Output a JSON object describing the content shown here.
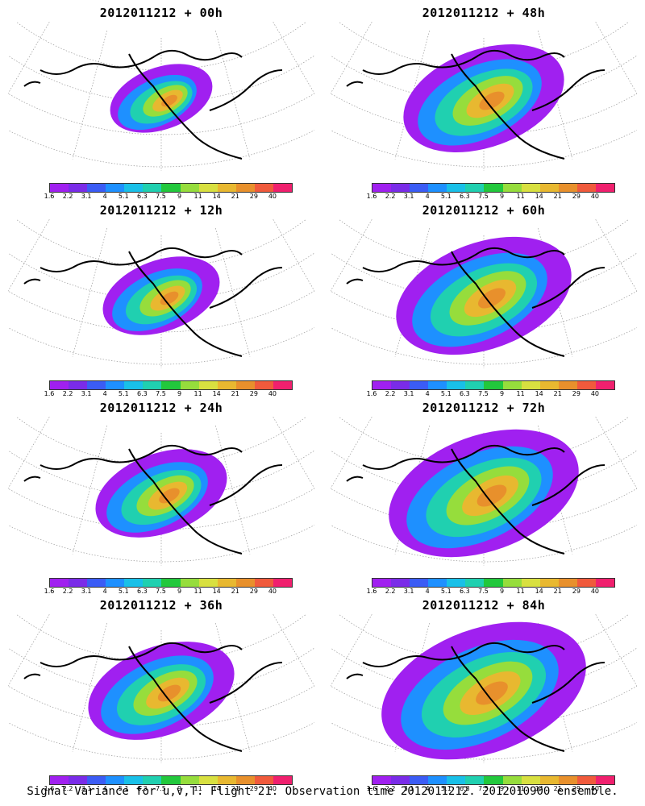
{
  "chart_data": [
    {
      "type": "heatmap",
      "title": "2012011212 + 00h",
      "lead_hours": 0
    },
    {
      "type": "heatmap",
      "title": "2012011212 + 12h",
      "lead_hours": 12
    },
    {
      "type": "heatmap",
      "title": "2012011212 + 24h",
      "lead_hours": 24
    },
    {
      "type": "heatmap",
      "title": "2012011212 + 36h",
      "lead_hours": 36
    },
    {
      "type": "heatmap",
      "title": "2012011212 + 48h",
      "lead_hours": 48
    },
    {
      "type": "heatmap",
      "title": "2012011212 + 60h",
      "lead_hours": 60
    },
    {
      "type": "heatmap",
      "title": "2012011212 + 72h",
      "lead_hours": 72
    },
    {
      "type": "heatmap",
      "title": "2012011212 + 84h",
      "lead_hours": 84
    }
  ],
  "colorbar": {
    "labels": [
      "1.6",
      "2.2",
      "3.1",
      "4",
      "5.1",
      "6.3",
      "7.5",
      "9",
      "11",
      "14",
      "21",
      "29",
      "40"
    ],
    "colors": [
      "#a020f0",
      "#7a2ce8",
      "#3b5cf5",
      "#1e90ff",
      "#19c0e8",
      "#20d0b0",
      "#22c83c",
      "#96dd3c",
      "#d8e040",
      "#e8b830",
      "#e8902c",
      "#f05a3c",
      "#f0206e"
    ]
  },
  "caption": "Signal Variance for u,v,T. Flight 21. Observation time 2012011212. 2012010900 ensemble."
}
